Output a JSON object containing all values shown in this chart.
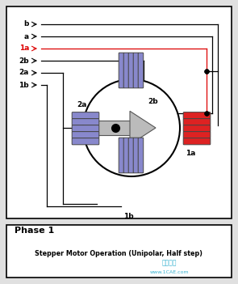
{
  "bg_color": "#e0e0e0",
  "white": "#ffffff",
  "border_color": "#000000",
  "title_text": "Stepper Motor Operation (Unipolar, Half step)",
  "phase_text": "Phase 1",
  "watermark1": "仿真在线",
  "watermark2": "www.1CAE.com",
  "wire_labels": [
    "b",
    "a",
    "1a",
    "2b",
    "2a",
    "1b"
  ],
  "coil_blue": "#8888cc",
  "coil_red": "#dd2222",
  "coil_edge": "#444444",
  "rotor_fill": "#bbbbbb",
  "rotor_edge": "#555555",
  "line_black": "#000000",
  "line_red": "#dd0000",
  "dot_color": "#000000"
}
